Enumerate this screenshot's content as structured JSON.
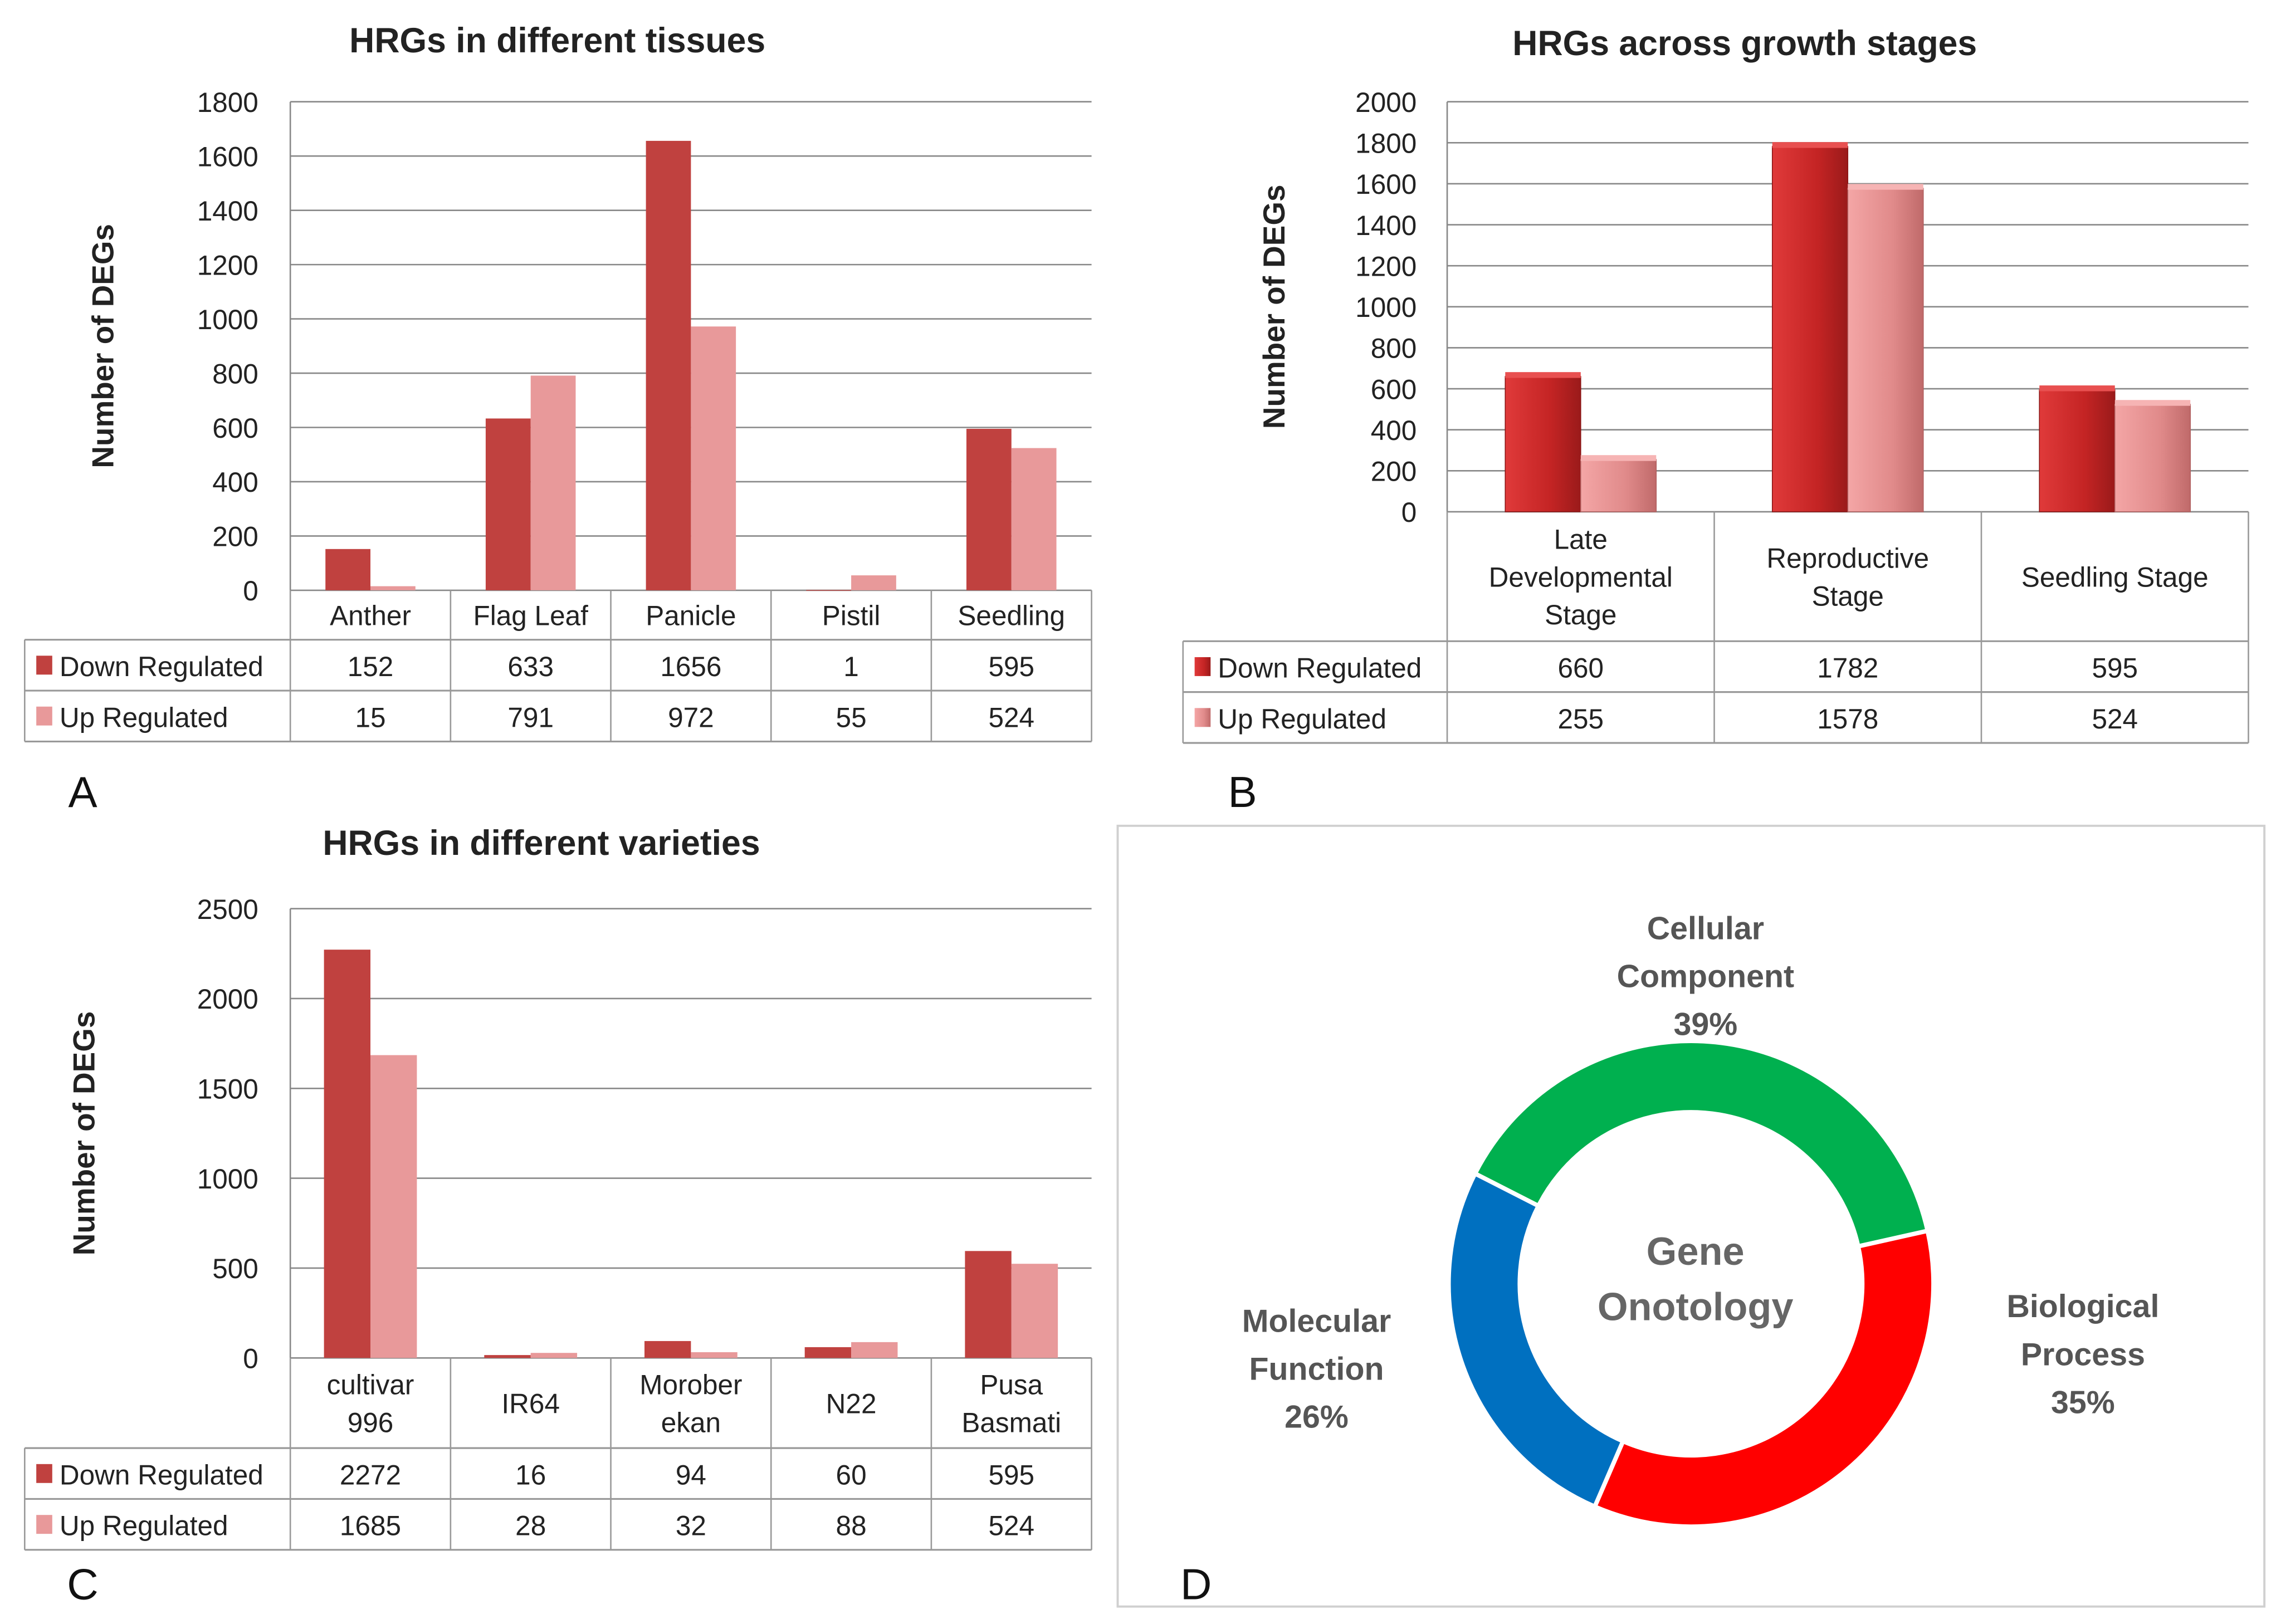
{
  "chart_data": [
    {
      "type": "bar",
      "panel_label": "A",
      "title": "HRGs in different tissues",
      "ylabel": "Number of DEGs",
      "ylim": [
        0,
        1800
      ],
      "ytick_step": 200,
      "yticks": [
        "0",
        "200",
        "400",
        "600",
        "800",
        "1000",
        "1200",
        "1400",
        "1600",
        "1800"
      ],
      "categories": [
        [
          "Anther"
        ],
        [
          "Flag Leaf"
        ],
        [
          "Panicle"
        ],
        [
          "Pistil"
        ],
        [
          "Seedling"
        ]
      ],
      "series": [
        {
          "name": "Down Regulated",
          "color": "#c0413f",
          "values": [
            152,
            633,
            1656,
            1,
            595
          ]
        },
        {
          "name": "Up Regulated",
          "color": "#e8999a",
          "values": [
            15,
            791,
            972,
            55,
            524
          ]
        }
      ],
      "legend": "data-table"
    },
    {
      "type": "bar",
      "panel_label": "B",
      "title": "HRGs across growth stages",
      "ylabel": "Number of DEGs",
      "ylim": [
        0,
        2000
      ],
      "ytick_step": 200,
      "yticks": [
        "0",
        "200",
        "400",
        "600",
        "800",
        "1000",
        "1200",
        "1400",
        "1600",
        "1800",
        "2000"
      ],
      "categories": [
        [
          "Late",
          "Developmental",
          "Stage"
        ],
        [
          "Reproductive",
          "Stage"
        ],
        [
          "Seedling Stage"
        ]
      ],
      "series": [
        {
          "name": "Down Regulated",
          "color": "#c42424",
          "values": [
            660,
            1782,
            595
          ]
        },
        {
          "name": "Up Regulated",
          "color": "#e69090",
          "values": [
            255,
            1578,
            524
          ]
        }
      ],
      "legend": "data-table"
    },
    {
      "type": "bar",
      "panel_label": "C",
      "title": "HRGs in different varieties",
      "ylabel": "Number of DEGs",
      "ylim": [
        0,
        2500
      ],
      "ytick_step": 500,
      "yticks": [
        "0",
        "500",
        "1000",
        "1500",
        "2000",
        "2500"
      ],
      "categories": [
        [
          "cultivar",
          "996"
        ],
        [
          "IR64"
        ],
        [
          "Morober",
          "ekan"
        ],
        [
          "N22"
        ],
        [
          "Pusa",
          "Basmati"
        ]
      ],
      "series": [
        {
          "name": "Down Regulated",
          "color": "#c0413f",
          "values": [
            2272,
            16,
            94,
            60,
            595
          ]
        },
        {
          "name": "Up Regulated",
          "color": "#e8999a",
          "values": [
            1685,
            28,
            32,
            88,
            524
          ]
        }
      ],
      "legend": "data-table"
    },
    {
      "type": "pie",
      "panel_label": "D",
      "center_text": [
        "Gene",
        "Onotology"
      ],
      "slices": [
        {
          "label": [
            "Cellular",
            "Component"
          ],
          "value": 39,
          "pct": "39%",
          "color": "#00b04f"
        },
        {
          "label": [
            "Biological",
            "Process"
          ],
          "value": 35,
          "pct": "35%",
          "color": "#ff0000"
        },
        {
          "label": [
            "Molecular",
            "Function"
          ],
          "value": 26,
          "pct": "26%",
          "color": "#0070c0"
        }
      ]
    }
  ]
}
